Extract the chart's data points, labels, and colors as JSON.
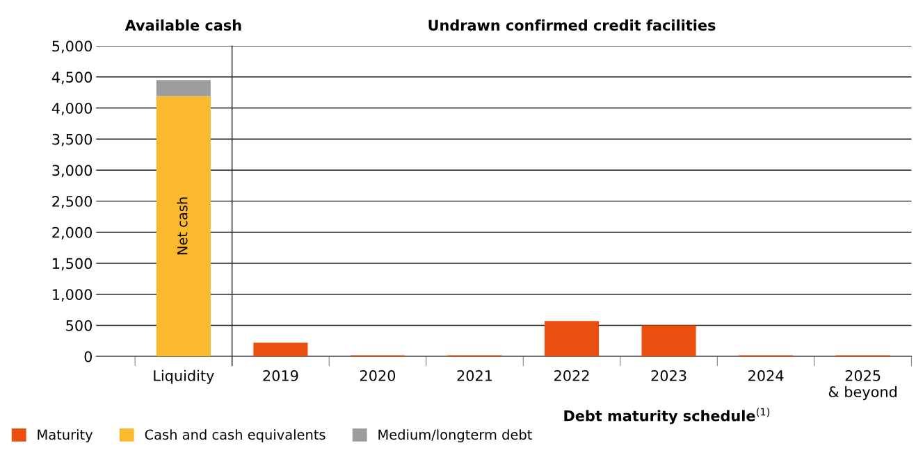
{
  "chart_data": {
    "type": "bar",
    "stacked": true,
    "categories": [
      "Liquidity",
      "2019",
      "2020",
      "2021",
      "2022",
      "2023",
      "2024",
      "2025\n& beyond"
    ],
    "series": [
      {
        "name": "Maturity",
        "color": "#e94f0f",
        "values": [
          null,
          220,
          20,
          20,
          570,
          500,
          20,
          20
        ]
      },
      {
        "name": "Cash and cash equivalents",
        "color": "#fbb92d",
        "values": [
          4190,
          null,
          null,
          null,
          null,
          null,
          null,
          null
        ]
      },
      {
        "name": "Medium/longterm debt",
        "color": "#9d9d9c",
        "values": [
          260,
          null,
          null,
          null,
          null,
          null,
          null,
          null
        ]
      }
    ],
    "xlabel": "Debt maturity schedule$^{(1)}$",
    "ylim": [
      0,
      5000
    ],
    "yticks": [
      0,
      500,
      {
        "value": 1000,
        "label": "1,000"
      },
      {
        "value": 1500,
        "label": "1,500"
      },
      {
        "value": 2000,
        "label": "2,000"
      },
      {
        "value": 2500,
        "label": "2,500"
      },
      {
        "value": 3000,
        "label": "3,000"
      },
      {
        "value": 3500,
        "label": "3,500"
      },
      {
        "value": 4000,
        "label": "4,000"
      },
      {
        "value": 4500,
        "label": "4,500"
      },
      {
        "value": 5000,
        "label": "5,000"
      }
    ],
    "grid": "y",
    "legend": "bottom left",
    "annotations": [
      "Available cash",
      "Undrawn confirmed credit facilities",
      "Net cash"
    ]
  }
}
